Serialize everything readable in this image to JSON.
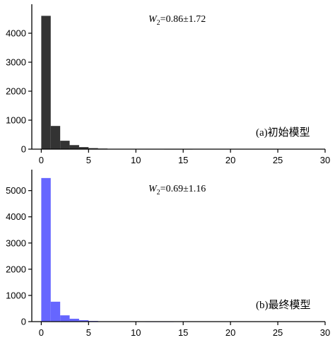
{
  "chart_data": [
    {
      "type": "bar",
      "bin_edges": [
        0,
        1,
        2,
        3,
        4,
        5,
        6,
        7,
        8,
        9,
        10,
        11,
        12,
        13,
        14,
        15,
        16,
        17,
        18,
        19,
        20,
        21,
        22,
        23,
        24,
        25,
        26,
        27,
        28,
        29,
        30
      ],
      "values": [
        4600,
        800,
        290,
        140,
        70,
        35,
        20,
        10,
        6,
        4,
        3,
        2,
        2,
        1,
        1,
        1,
        0,
        0,
        0,
        0,
        0,
        0,
        0,
        0,
        0,
        0,
        0,
        0,
        0,
        0
      ],
      "xlim": [
        -1,
        30
      ],
      "ylim": [
        0,
        5000
      ],
      "xticks": [
        0,
        5,
        10,
        15,
        20,
        25,
        30
      ],
      "yticks": [
        0,
        1000,
        2000,
        3000,
        4000
      ],
      "xtick_labels": [
        "0",
        "5",
        "10",
        "15",
        "20",
        "25",
        "30"
      ],
      "ytick_labels": [
        "0",
        "1000",
        "2000",
        "3000",
        "4000"
      ],
      "bar_color": "#333333",
      "stat_prefix": "W",
      "stat_subscript": "2",
      "stat_value": "=0.86±1.72",
      "panel_label": "(a)初始模型",
      "grid": false
    },
    {
      "type": "bar",
      "bin_edges": [
        0,
        1,
        2,
        3,
        4,
        5,
        6,
        7,
        8,
        9,
        10,
        11,
        12,
        13,
        14,
        15,
        16,
        17,
        18,
        19,
        20,
        21,
        22,
        23,
        24,
        25,
        26,
        27,
        28,
        29,
        30
      ],
      "values": [
        5480,
        760,
        240,
        110,
        55,
        25,
        12,
        6,
        4,
        3,
        2,
        1,
        1,
        1,
        0,
        0,
        0,
        0,
        0,
        0,
        0,
        0,
        0,
        0,
        0,
        0,
        0,
        0,
        0,
        0
      ],
      "xlim": [
        -1,
        30
      ],
      "ylim": [
        0,
        5800
      ],
      "xticks": [
        0,
        5,
        10,
        15,
        20,
        25,
        30
      ],
      "yticks": [
        0,
        1000,
        2000,
        3000,
        4000,
        5000
      ],
      "xtick_labels": [
        "0",
        "5",
        "10",
        "15",
        "20",
        "25",
        "30"
      ],
      "ytick_labels": [
        "0",
        "1000",
        "2000",
        "3000",
        "4000",
        "5000"
      ],
      "bar_color": "#6666ff",
      "stat_prefix": "W",
      "stat_subscript": "2",
      "stat_value": "=0.69±1.16",
      "panel_label": "(b)最终模型",
      "grid": false
    }
  ]
}
